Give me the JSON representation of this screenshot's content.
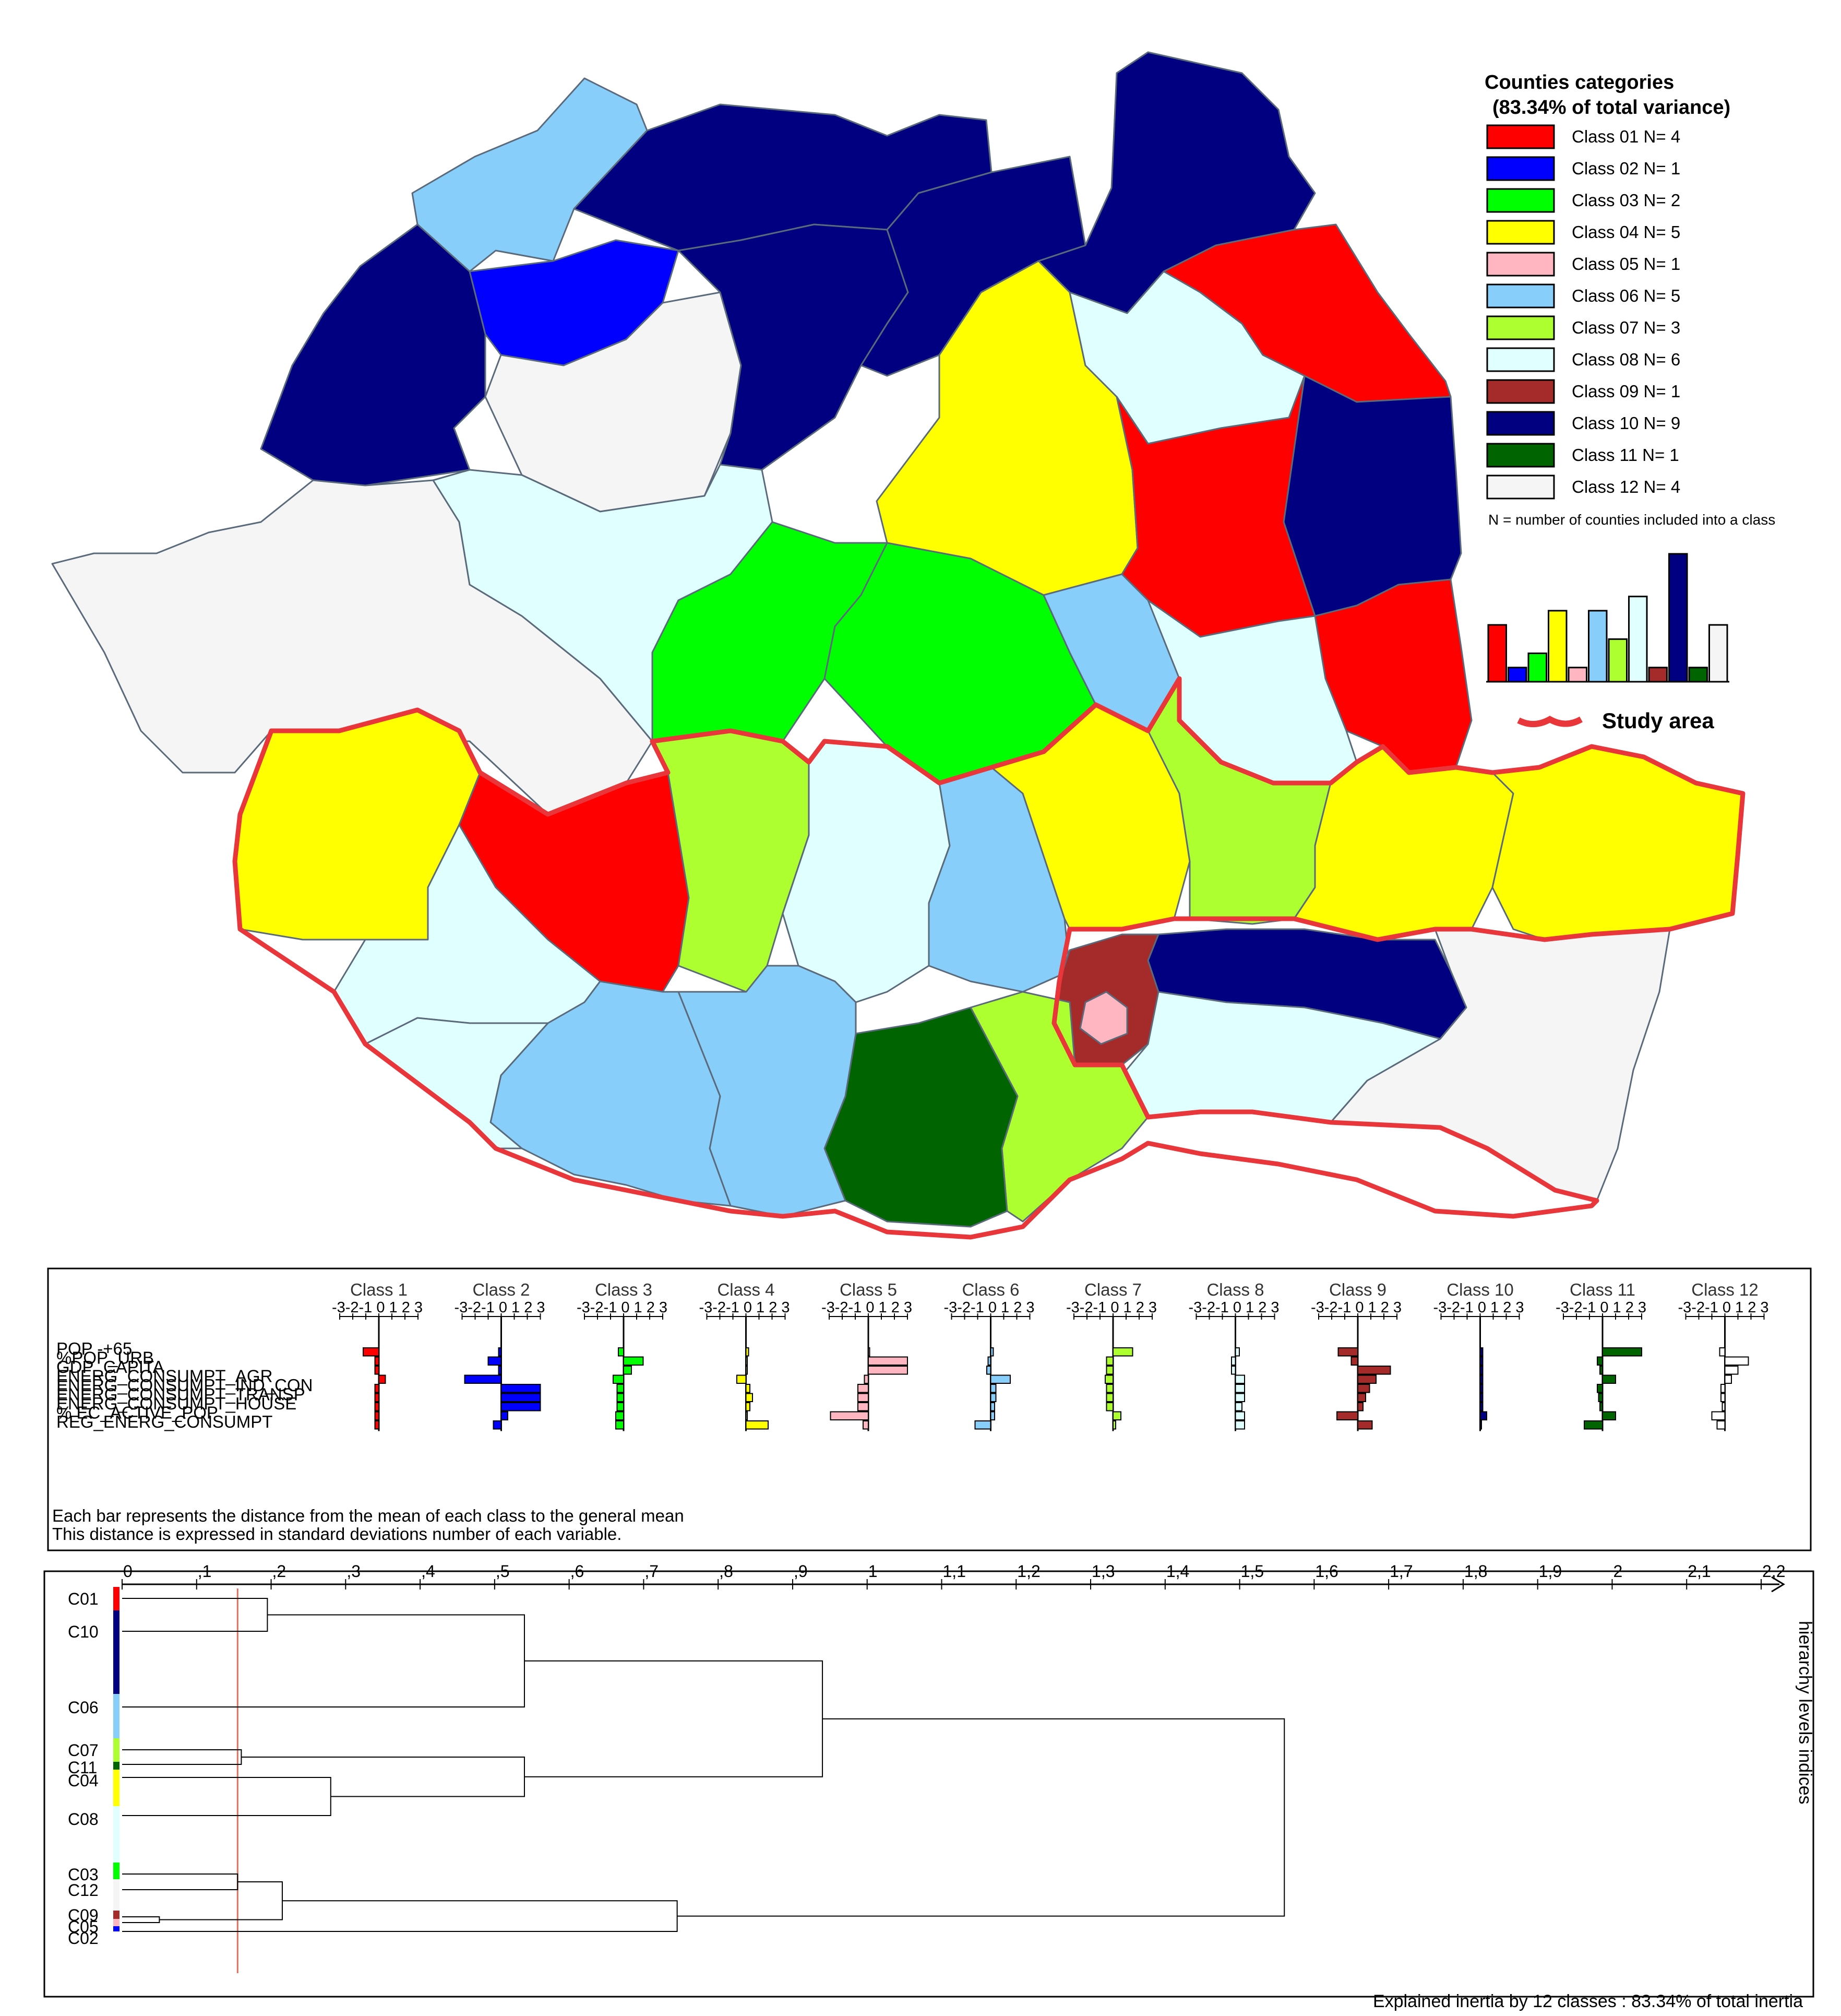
{
  "legend": {
    "title_line1": "Counties categories",
    "title_line2": "(83.34% of total variance)",
    "items": [
      {
        "label": "Class 01 N= 4",
        "color": "#ff0000",
        "n": 4
      },
      {
        "label": "Class 02 N= 1",
        "color": "#0000ff",
        "n": 1
      },
      {
        "label": "Class 03 N= 2",
        "color": "#00ff00",
        "n": 2
      },
      {
        "label": "Class 04 N= 5",
        "color": "#ffff00",
        "n": 5
      },
      {
        "label": "Class 05 N= 1",
        "color": "#ffb6c1",
        "n": 1
      },
      {
        "label": "Class 06 N= 5",
        "color": "#87cefa",
        "n": 5
      },
      {
        "label": "Class 07 N= 3",
        "color": "#adff2f",
        "n": 3
      },
      {
        "label": "Class 08 N= 6",
        "color": "#e0ffff",
        "n": 6
      },
      {
        "label": "Class 09 N= 1",
        "color": "#a52a2a",
        "n": 1
      },
      {
        "label": "Class 10 N= 9",
        "color": "#000080",
        "n": 9
      },
      {
        "label": "Class 11 N= 1",
        "color": "#006400",
        "n": 1
      },
      {
        "label": "Class 12 N= 4",
        "color": "#f5f5f5",
        "n": 4
      }
    ],
    "note": "N = number of counties included into a class",
    "study_area_label": "Study area"
  },
  "profiles": {
    "variables": [
      "POP -+65",
      "%POP_URB",
      "GDP_CAPITA",
      "ENERG_CONSUMPT_AGR",
      "ENERG_CONSUMPT_IND_CON",
      "ENERG_CONSUMPT_TRANSP",
      "ENERG_CONSUMPT_HOUSE",
      "% EC_ACTIVE_POP",
      "REG_ENERG_CONSUMPT"
    ],
    "axis_ticks": "-3-2-1 0 1 2 3",
    "classes": [
      {
        "name": "Class 1",
        "color": "#ff0000",
        "values": [
          -1.2,
          -0.3,
          -0.3,
          0.5,
          -0.3,
          -0.3,
          -0.3,
          -0.3,
          -0.3
        ]
      },
      {
        "name": "Class 2",
        "color": "#0000ff",
        "values": [
          -0.2,
          -1.0,
          -0.2,
          -2.8,
          3.0,
          3.0,
          3.0,
          0.5,
          -0.6
        ]
      },
      {
        "name": "Class 3",
        "color": "#00ff00",
        "values": [
          -0.4,
          1.5,
          0.6,
          -0.8,
          -0.5,
          -0.5,
          -0.5,
          -0.6,
          -0.6
        ]
      },
      {
        "name": "Class 4",
        "color": "#ffff00",
        "values": [
          0.2,
          0.1,
          0.1,
          -0.7,
          0.3,
          0.5,
          0.3,
          0.1,
          1.7
        ]
      },
      {
        "name": "Class 5",
        "color": "#ffb6c1",
        "values": [
          0.1,
          3.0,
          3.0,
          -0.3,
          -0.8,
          -0.8,
          -0.8,
          -2.9,
          -0.4
        ]
      },
      {
        "name": "Class 6",
        "color": "#87cefa",
        "values": [
          0.2,
          -0.2,
          -0.3,
          1.5,
          0.4,
          0.4,
          0.3,
          0.3,
          -1.2
        ]
      },
      {
        "name": "Class 7",
        "color": "#adff2f",
        "values": [
          1.5,
          -0.5,
          -0.5,
          -0.6,
          -0.5,
          -0.5,
          -0.5,
          0.6,
          0.2
        ]
      },
      {
        "name": "Class 8",
        "color": "#e0ffff",
        "values": [
          0.3,
          -0.3,
          -0.3,
          0.7,
          0.7,
          0.7,
          0.5,
          0.7,
          0.7
        ]
      },
      {
        "name": "Class 9",
        "color": "#a52a2a",
        "values": [
          -1.5,
          -0.5,
          2.5,
          1.4,
          0.9,
          0.6,
          0.4,
          -1.6,
          1.1
        ]
      },
      {
        "name": "Class 10",
        "color": "#000080",
        "values": [
          0.2,
          0.2,
          0.2,
          0.2,
          0.2,
          0.2,
          0.2,
          0.5,
          0.1
        ]
      },
      {
        "name": "Class 11",
        "color": "#006400",
        "values": [
          3.0,
          -0.4,
          -0.2,
          1.0,
          -0.4,
          -0.3,
          -0.2,
          1.0,
          -1.4
        ]
      },
      {
        "name": "Class 12",
        "color": "#ffffff",
        "values": [
          -0.4,
          1.8,
          1.0,
          0.5,
          -0.3,
          -0.3,
          -0.2,
          -1.0,
          -0.6
        ]
      }
    ],
    "note_line1": "Each bar represents the distance from the mean of each class to the general mean",
    "note_line2": "This distance is expressed in standard deviations number of each variable."
  },
  "dendrogram": {
    "ticks": [
      "0",
      ",1",
      ",2",
      ",3",
      ",4",
      ",5",
      ",6",
      ",7",
      ",8",
      ",9",
      "1",
      "1,1",
      "1,2",
      "1,3",
      "1,4",
      "1,5",
      "1,6",
      "1,7",
      "1,8",
      "1,9",
      "2",
      "2,1",
      "2,2"
    ],
    "axis_label": "hierarchy levels indices",
    "cut_level": 0.155,
    "leaves": [
      {
        "label": "C01",
        "color": "#ff0000"
      },
      {
        "label": "C10",
        "color": "#000080"
      },
      {
        "label": "C06",
        "color": "#87cefa"
      },
      {
        "label": "C07",
        "color": "#adff2f"
      },
      {
        "label": "C11",
        "color": "#006400"
      },
      {
        "label": "C04",
        "color": "#ffff00"
      },
      {
        "label": "C08",
        "color": "#e0ffff"
      },
      {
        "label": "C03",
        "color": "#00ff00"
      },
      {
        "label": "C12",
        "color": "#f5f5f5"
      },
      {
        "label": "C09",
        "color": "#a52a2a"
      },
      {
        "label": "C05",
        "color": "#ffb6c1"
      },
      {
        "label": "C02",
        "color": "#0000ff"
      }
    ],
    "merges": [
      {
        "a": "C01",
        "b": "C10",
        "h": 0.195
      },
      {
        "a": "C07",
        "b": "C11",
        "h": 0.16
      },
      {
        "a": "C04",
        "b": "C08",
        "h": 0.28
      },
      {
        "a": "C03",
        "b": "C12",
        "h": 0.155
      },
      {
        "a": "C09",
        "b": "C05",
        "h": 0.05
      },
      {
        "a": "C03C12",
        "b": "C09C05",
        "h": 0.215
      },
      {
        "a": "C01C10",
        "b": "C06",
        "h": 0.54
      },
      {
        "a": "C07C11",
        "b": "C04C08",
        "h": 0.54
      },
      {
        "a": "C01C10C06",
        "b": "C07C11C04C08",
        "h": 0.94
      },
      {
        "a": "C03C12C09C05",
        "b": "C02",
        "h": 0.745
      },
      {
        "a": "left",
        "b": "right",
        "h": 1.56
      }
    ],
    "footer": "Explained inertia by 12 classes : 83.34% of total inertia"
  }
}
